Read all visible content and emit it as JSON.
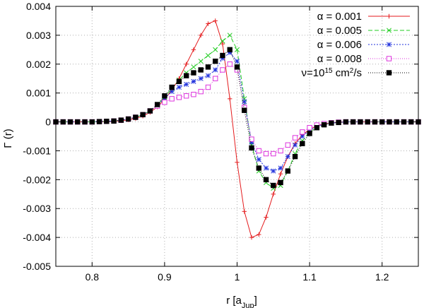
{
  "chart_data": {
    "type": "line",
    "title": "",
    "xlabel_main": "r [a",
    "xlabel_sub": "Jup",
    "xlabel_end": "]",
    "ylabel": "Γ (r)",
    "xlim": [
      0.75,
      1.25
    ],
    "ylim": [
      -0.005,
      0.004
    ],
    "grid": true,
    "legend_position": "top-right",
    "x_ticks": [
      0.8,
      0.9,
      1.0,
      1.1,
      1.2
    ],
    "x_tick_labels": [
      "0.8",
      "0.9",
      "1",
      "1.1",
      "1.2"
    ],
    "y_ticks": [
      -0.005,
      -0.004,
      -0.003,
      -0.002,
      -0.001,
      0,
      0.001,
      0.002,
      0.003,
      0.004
    ],
    "y_tick_labels": [
      "-0.005",
      "-0.004",
      "-0.003",
      "-0.002",
      "-0.001",
      "0",
      "0.001",
      "0.002",
      "0.003",
      "0.004"
    ],
    "series": [
      {
        "name": "α = 0.001",
        "legend_label": "α = 0.001",
        "color": "#e41a1c",
        "marker": "plus",
        "dash": "",
        "x": [
          0.75,
          0.76,
          0.77,
          0.78,
          0.79,
          0.8,
          0.81,
          0.82,
          0.83,
          0.84,
          0.85,
          0.86,
          0.87,
          0.88,
          0.89,
          0.9,
          0.91,
          0.92,
          0.93,
          0.94,
          0.95,
          0.96,
          0.97,
          0.98,
          0.99,
          1.0,
          1.01,
          1.02,
          1.03,
          1.04,
          1.05,
          1.06,
          1.07,
          1.08,
          1.09,
          1.1,
          1.11,
          1.12,
          1.13,
          1.14,
          1.15,
          1.16,
          1.17,
          1.18,
          1.19,
          1.2,
          1.21,
          1.22,
          1.23,
          1.24,
          1.25
        ],
        "y": [
          0,
          0,
          0,
          0,
          0,
          0,
          0,
          1e-05,
          2e-05,
          4e-05,
          7e-05,
          0.00012,
          0.0002,
          0.00033,
          0.00052,
          0.00078,
          0.0011,
          0.0015,
          0.002,
          0.0025,
          0.003,
          0.0034,
          0.0035,
          0.0027,
          0.0008,
          -0.0014,
          -0.0031,
          -0.004,
          -0.0039,
          -0.0033,
          -0.0025,
          -0.0018,
          -0.0012,
          -0.00075,
          -0.00045,
          -0.00026,
          -0.00014,
          -7e-05,
          -3e-05,
          -1e-05,
          0,
          0,
          0,
          0,
          0,
          0,
          0,
          0,
          0,
          0,
          0
        ]
      },
      {
        "name": "α = 0.005",
        "legend_label": "α = 0.005",
        "color": "#22cc22",
        "marker": "x",
        "dash": "6,3",
        "x": [
          0.75,
          0.76,
          0.77,
          0.78,
          0.79,
          0.8,
          0.81,
          0.82,
          0.83,
          0.84,
          0.85,
          0.86,
          0.87,
          0.88,
          0.89,
          0.9,
          0.91,
          0.92,
          0.93,
          0.94,
          0.95,
          0.96,
          0.97,
          0.98,
          0.99,
          1.0,
          1.01,
          1.02,
          1.03,
          1.04,
          1.05,
          1.06,
          1.07,
          1.08,
          1.09,
          1.1,
          1.11,
          1.12,
          1.13,
          1.14,
          1.15,
          1.16,
          1.17,
          1.18,
          1.19,
          1.2,
          1.21,
          1.22,
          1.23,
          1.24,
          1.25
        ],
        "y": [
          0,
          0,
          0,
          0,
          0,
          0,
          1e-05,
          2e-05,
          3e-05,
          6e-05,
          0.0001,
          0.00016,
          0.00025,
          0.00038,
          0.00058,
          0.00085,
          0.00115,
          0.00145,
          0.0017,
          0.0019,
          0.0021,
          0.0023,
          0.0025,
          0.0028,
          0.003,
          0.0025,
          0.0008,
          -0.0008,
          -0.0017,
          -0.0021,
          -0.0023,
          -0.0022,
          -0.0017,
          -0.0011,
          -0.00065,
          -0.00035,
          -0.00018,
          -9e-05,
          -4e-05,
          -2e-05,
          0,
          0,
          0,
          0,
          0,
          0,
          0,
          0,
          0,
          0,
          0
        ]
      },
      {
        "name": "α = 0.006",
        "legend_label": "α = 0.006",
        "color": "#2233dd",
        "marker": "star",
        "dash": "2,2",
        "x": [
          0.75,
          0.76,
          0.77,
          0.78,
          0.79,
          0.8,
          0.81,
          0.82,
          0.83,
          0.84,
          0.85,
          0.86,
          0.87,
          0.88,
          0.89,
          0.9,
          0.91,
          0.92,
          0.93,
          0.94,
          0.95,
          0.96,
          0.97,
          0.98,
          0.99,
          1.0,
          1.01,
          1.02,
          1.03,
          1.04,
          1.05,
          1.06,
          1.07,
          1.08,
          1.09,
          1.1,
          1.11,
          1.12,
          1.13,
          1.14,
          1.15,
          1.16,
          1.17,
          1.18,
          1.19,
          1.2,
          1.21,
          1.22,
          1.23,
          1.24,
          1.25
        ],
        "y": [
          0,
          0,
          0,
          0,
          0,
          0,
          1e-05,
          2e-05,
          3e-05,
          6e-05,
          0.0001,
          0.00016,
          0.00025,
          0.00038,
          0.00058,
          0.00082,
          0.00105,
          0.0012,
          0.0013,
          0.0014,
          0.0015,
          0.0016,
          0.0018,
          0.0022,
          0.0024,
          0.0021,
          0.0007,
          -0.0007,
          -0.0013,
          -0.0016,
          -0.0017,
          -0.0016,
          -0.0012,
          -0.0008,
          -0.0005,
          -0.00028,
          -0.00015,
          -8e-05,
          -4e-05,
          -2e-05,
          0,
          0,
          0,
          0,
          0,
          0,
          0,
          0,
          0,
          0,
          0
        ]
      },
      {
        "name": "α = 0.008",
        "legend_label": "α = 0.008",
        "color": "#dd33dd",
        "marker": "square-open",
        "dash": "1,2",
        "x": [
          0.75,
          0.76,
          0.77,
          0.78,
          0.79,
          0.8,
          0.81,
          0.82,
          0.83,
          0.84,
          0.85,
          0.86,
          0.87,
          0.88,
          0.89,
          0.9,
          0.91,
          0.92,
          0.93,
          0.94,
          0.95,
          0.96,
          0.97,
          0.98,
          0.99,
          1.0,
          1.01,
          1.02,
          1.03,
          1.04,
          1.05,
          1.06,
          1.07,
          1.08,
          1.09,
          1.1,
          1.11,
          1.12,
          1.13,
          1.14,
          1.15,
          1.16,
          1.17,
          1.18,
          1.19,
          1.2,
          1.21,
          1.22,
          1.23,
          1.24,
          1.25
        ],
        "y": [
          0,
          0,
          0,
          0,
          0,
          0,
          1e-05,
          2e-05,
          3e-05,
          6e-05,
          0.0001,
          0.00016,
          0.00025,
          0.00038,
          0.00055,
          0.00068,
          0.0008,
          0.00085,
          0.0009,
          0.00095,
          0.00105,
          0.0012,
          0.0015,
          0.0018,
          0.002,
          0.0018,
          0.0005,
          -0.0006,
          -0.001,
          -0.0011,
          -0.0011,
          -0.001,
          -0.0008,
          -0.00055,
          -0.00035,
          -0.0002,
          -0.00011,
          -6e-05,
          -3e-05,
          -1e-05,
          0,
          0,
          0,
          0,
          0,
          0,
          0,
          0,
          0,
          0,
          0
        ]
      },
      {
        "name": "ν=10^15 cm^2/s",
        "legend_label_main": "ν=10",
        "legend_label_exp1": "15",
        "legend_label_mid": " cm",
        "legend_label_exp2": "2",
        "legend_label_end": "/s",
        "color": "#000000",
        "marker": "square-filled",
        "dash": "1,2",
        "x": [
          0.75,
          0.76,
          0.77,
          0.78,
          0.79,
          0.8,
          0.81,
          0.82,
          0.83,
          0.84,
          0.85,
          0.86,
          0.87,
          0.88,
          0.89,
          0.9,
          0.91,
          0.92,
          0.93,
          0.94,
          0.95,
          0.96,
          0.97,
          0.98,
          0.99,
          1.0,
          1.01,
          1.02,
          1.03,
          1.04,
          1.05,
          1.06,
          1.07,
          1.08,
          1.09,
          1.1,
          1.11,
          1.12,
          1.13,
          1.14,
          1.15,
          1.16,
          1.17,
          1.18,
          1.19,
          1.2,
          1.21,
          1.22,
          1.23,
          1.24,
          1.25
        ],
        "y": [
          0,
          0,
          0,
          0,
          0,
          0,
          1e-05,
          2e-05,
          3e-05,
          6e-05,
          0.0001,
          0.00016,
          0.00025,
          0.00038,
          0.0006,
          0.0009,
          0.0012,
          0.0014,
          0.0016,
          0.0017,
          0.0018,
          0.0019,
          0.0021,
          0.0023,
          0.0025,
          0.0019,
          0.0004,
          -0.0009,
          -0.0016,
          -0.002,
          -0.0022,
          -0.0021,
          -0.0017,
          -0.0012,
          -0.00075,
          -0.0004,
          -0.0002,
          -0.0001,
          -4e-05,
          -2e-05,
          0,
          0,
          0,
          0,
          0,
          0,
          0,
          0,
          0,
          0,
          0
        ]
      }
    ]
  }
}
